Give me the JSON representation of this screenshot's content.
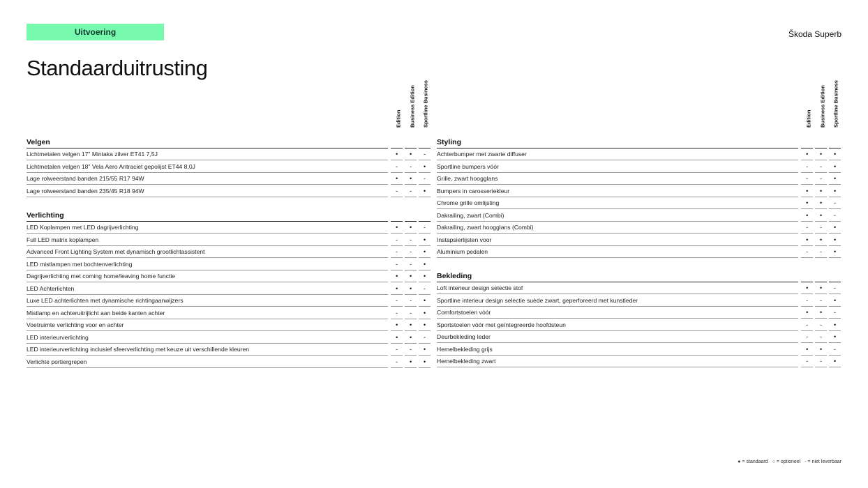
{
  "header": {
    "badge": "Uitvoering",
    "brand": "Škoda Superb",
    "title": "Standaarduitrusting"
  },
  "columns": [
    "Edition",
    "Business Edition",
    "Sportline Business"
  ],
  "left_sections": [
    {
      "title": "Velgen",
      "rows": [
        {
          "label": "Lichtmetalen velgen 17\" Mintaka zilver ET41 7,5J",
          "marks": [
            "•",
            "•",
            "-"
          ]
        },
        {
          "label": "Lichtmetalen velgen 18\" Vela Aero Antraciet gepolijst ET44 8,0J",
          "marks": [
            "-",
            "-",
            "•"
          ]
        },
        {
          "label": "Lage rolweerstand banden 215/55 R17 94W",
          "marks": [
            "•",
            "•",
            "-"
          ]
        },
        {
          "label": "Lage rolweerstand banden 235/45 R18 94W",
          "marks": [
            "-",
            "-",
            "•"
          ]
        }
      ]
    },
    {
      "title": "Verlichting",
      "rows": [
        {
          "label": "LED Koplampen met LED dagrijverlichting",
          "marks": [
            "•",
            "•",
            "-"
          ]
        },
        {
          "label": "Full LED matrix koplampen",
          "marks": [
            "-",
            "-",
            "•"
          ]
        },
        {
          "label": "Advanced Front Lighting System met dynamisch grootlichtassistent",
          "marks": [
            "-",
            "-",
            "•"
          ]
        },
        {
          "label": "LED mistlampen met bochtenverlichting",
          "marks": [
            "-",
            "-",
            "•"
          ]
        },
        {
          "label": "Dagrijverlichting met coming home/leaving home functie",
          "marks": [
            "•",
            "•",
            "•"
          ]
        },
        {
          "label": "LED Achterlichten",
          "marks": [
            "•",
            "•",
            "-"
          ]
        },
        {
          "label": "Luxe LED achterlichten met dynamische richtingaanwijzers",
          "marks": [
            "-",
            "-",
            "•"
          ]
        },
        {
          "label": "Mistlamp en achteruitrijlicht aan beide kanten achter",
          "marks": [
            "-",
            "-",
            "•"
          ]
        },
        {
          "label": "Voetruimte verlichting voor en achter",
          "marks": [
            "•",
            "•",
            "•"
          ]
        },
        {
          "label": "LED interieurverlichting",
          "marks": [
            "•",
            "•",
            "-"
          ]
        },
        {
          "label": "LED interieurverlichting inclusief sfeerverlichting met keuze uit verschillende kleuren",
          "marks": [
            "-",
            "-",
            "•"
          ]
        },
        {
          "label": "Verlichte portiergrepen",
          "marks": [
            "-",
            "•",
            "•"
          ]
        }
      ]
    }
  ],
  "right_sections": [
    {
      "title": "Styling",
      "rows": [
        {
          "label": "Achterbumper met zwarte diffuser",
          "marks": [
            "•",
            "•",
            "•"
          ]
        },
        {
          "label": "Sportline bumpers vóór",
          "marks": [
            "-",
            "-",
            "•"
          ]
        },
        {
          "label": "Grille, zwart hoogglans",
          "marks": [
            "-",
            "-",
            "•"
          ]
        },
        {
          "label": "Bumpers in carosseriekleur",
          "marks": [
            "•",
            "•",
            "•"
          ]
        },
        {
          "label": "Chrome grille omlijsting",
          "marks": [
            "•",
            "•",
            "-"
          ]
        },
        {
          "label": "Dakrailing, zwart (Combi)",
          "marks": [
            "•",
            "•",
            "-"
          ]
        },
        {
          "label": "Dakrailing, zwart hoogglans (Combi)",
          "marks": [
            "-",
            "-",
            "•"
          ]
        },
        {
          "label": "Instapsierlijsten voor",
          "marks": [
            "•",
            "•",
            "•"
          ]
        },
        {
          "label": "Aluminium pedalen",
          "marks": [
            "-",
            "-",
            "•"
          ]
        }
      ]
    },
    {
      "title": "Bekleding",
      "rows": [
        {
          "label": "Loft interieur design selectie stof",
          "marks": [
            "•",
            "•",
            "-"
          ]
        },
        {
          "label": "Sportline interieur design selectie suède zwart, geperforeerd met kunstleder",
          "marks": [
            "-",
            "-",
            "•"
          ]
        },
        {
          "label": "Comfortstoelen vóór",
          "marks": [
            "•",
            "•",
            "-"
          ]
        },
        {
          "label": "Sportstoelen vóór met geïntegreerde hoofdsteun",
          "marks": [
            "-",
            "-",
            "•"
          ]
        },
        {
          "label": "Deurbekleding leder",
          "marks": [
            "-",
            "-",
            "•"
          ]
        },
        {
          "label": "Hemelbekleding grijs",
          "marks": [
            "•",
            "•",
            "-"
          ]
        },
        {
          "label": "Hemelbekleding zwart",
          "marks": [
            "-",
            "-",
            "•"
          ]
        }
      ]
    }
  ],
  "legend": [
    "● = standaard",
    "○ = optioneel",
    "- = niet leverbaar"
  ],
  "colors": {
    "accent": "#78faae"
  }
}
